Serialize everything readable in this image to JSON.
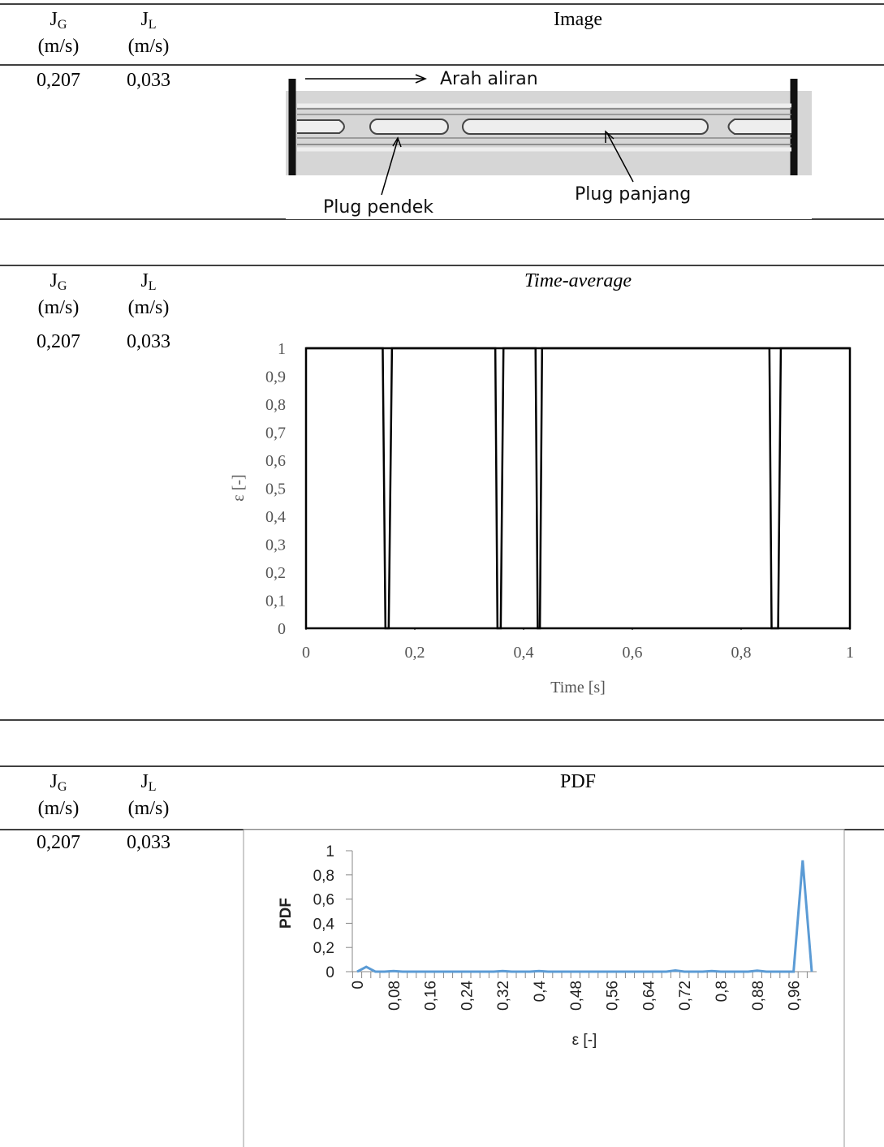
{
  "tables": [
    {
      "header": {
        "columns": [
          {
            "symbol": "J",
            "subscript": "G",
            "unit": "(m/s)"
          },
          {
            "symbol": "J",
            "subscript": "L",
            "unit": "(m/s)"
          }
        ],
        "figure_title": "Image"
      },
      "row": [
        "0,207",
        "0,033"
      ],
      "figure": {
        "labels": [
          "Arah aliran",
          "Plug pendek",
          "Plug panjang"
        ]
      }
    },
    {
      "header": {
        "columns": [
          {
            "symbol": "J",
            "subscript": "G",
            "unit": "(m/s)"
          },
          {
            "symbol": "J",
            "subscript": "L",
            "unit": "(m/s)"
          }
        ],
        "figure_title": "Time-average"
      },
      "row": [
        "0,207",
        "0,033"
      ]
    },
    {
      "header": {
        "columns": [
          {
            "symbol": "J",
            "subscript": "G",
            "unit": "(m/s)"
          },
          {
            "symbol": "J",
            "subscript": "L",
            "unit": "(m/s)"
          }
        ],
        "figure_title": "PDF"
      },
      "row": [
        "0,207",
        "0,033"
      ]
    }
  ],
  "chart_data": [
    {
      "type": "line",
      "xlabel": "Time [s]",
      "ylabel": "ε [-]",
      "color": "#000000",
      "x": [
        0,
        0.141,
        0.146,
        0.152,
        0.158,
        0.348,
        0.352,
        0.358,
        0.363,
        0.422,
        0.426,
        0.43,
        0.434,
        0.852,
        0.856,
        0.868,
        0.873,
        1
      ],
      "values": [
        1,
        1,
        0,
        0,
        1,
        1,
        0,
        0,
        1,
        1,
        0,
        0,
        1,
        1,
        0,
        0,
        1,
        1
      ],
      "xlim": [
        0,
        1
      ],
      "xticks": [
        0,
        {
          "value": 0.2,
          "label": "0,2"
        },
        {
          "value": 0.4,
          "label": "0,4"
        },
        {
          "value": 0.6,
          "label": "0,6"
        },
        {
          "value": 0.8,
          "label": "0,8"
        },
        1
      ],
      "ylim": [
        0,
        1
      ],
      "yticks": [
        0,
        {
          "value": 0.1,
          "label": "0,1"
        },
        {
          "value": 0.2,
          "label": "0,2"
        },
        {
          "value": 0.3,
          "label": "0,3"
        },
        {
          "value": 0.4,
          "label": "0,4"
        },
        {
          "value": 0.5,
          "label": "0,5"
        },
        {
          "value": 0.6,
          "label": "0,6"
        },
        {
          "value": 0.7,
          "label": "0,7"
        },
        {
          "value": 0.8,
          "label": "0,8"
        },
        {
          "value": 0.9,
          "label": "0,9"
        },
        1
      ]
    },
    {
      "type": "line",
      "xlabel": "ε [-]",
      "ylabel": "PDF",
      "color": "#5b9bd5",
      "categories": [
        "0",
        null,
        null,
        null,
        "0,08",
        null,
        null,
        null,
        "0,16",
        null,
        null,
        null,
        "0,24",
        null,
        null,
        null,
        "0,32",
        null,
        null,
        null,
        "0,4",
        null,
        null,
        null,
        "0,48",
        null,
        null,
        null,
        "0,56",
        null,
        null,
        null,
        "0,64",
        null,
        null,
        null,
        "0,72",
        null,
        null,
        null,
        "0,8",
        null,
        null,
        null,
        "0,88",
        null,
        null,
        null,
        "0,96",
        null,
        null
      ],
      "values": [
        0,
        0.04,
        0,
        0,
        0.005,
        0,
        0,
        0,
        0,
        0,
        0,
        0,
        0,
        0,
        0,
        0,
        0.005,
        0,
        0,
        0,
        0.005,
        0,
        0,
        0,
        0,
        0,
        0,
        0,
        0,
        0,
        0,
        0,
        0,
        0,
        0,
        0.01,
        0,
        0,
        0,
        0.005,
        0,
        0,
        0,
        0,
        0.008,
        0,
        0,
        0,
        0,
        0.92,
        0
      ],
      "ylim": [
        0,
        1
      ],
      "yticks": [
        0,
        {
          "value": 0.2,
          "label": "0,2"
        },
        {
          "value": 0.4,
          "label": "0,4"
        },
        {
          "value": 0.6,
          "label": "0,6"
        },
        {
          "value": 0.8,
          "label": "0,8"
        },
        1
      ]
    }
  ]
}
